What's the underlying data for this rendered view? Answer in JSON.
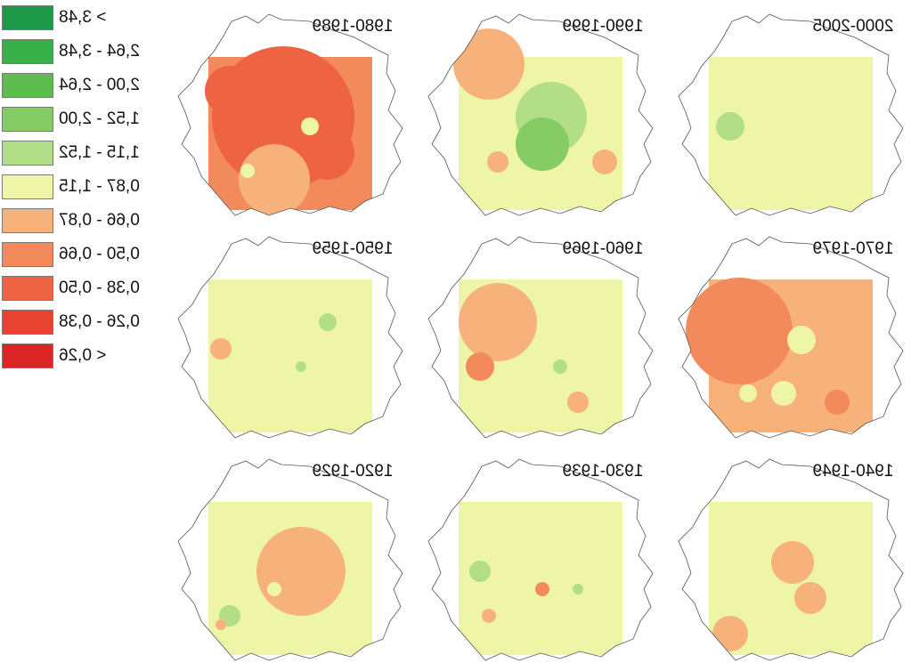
{
  "legend": {
    "items": [
      {
        "label": "> 3,48",
        "color": "#1f9a4a"
      },
      {
        "label": "2,64 - 3,48",
        "color": "#38b04a"
      },
      {
        "label": "2,00 - 2,64",
        "color": "#5cbc4e"
      },
      {
        "label": "1,52 - 2,00",
        "color": "#86cc64"
      },
      {
        "label": "1,15 - 1,52",
        "color": "#b3de88"
      },
      {
        "label": "0,87 - 1,15",
        "color": "#eef5a6"
      },
      {
        "label": "0,66 - 0,87",
        "color": "#f6b27a"
      },
      {
        "label": "0,50 - 0,66",
        "color": "#f38a5c"
      },
      {
        "label": "0,38 - 0,50",
        "color": "#ee6442"
      },
      {
        "label": "0,26 - 0,38",
        "color": "#e84230"
      },
      {
        "label": "< 0,26",
        "color": "#dc2626"
      }
    ]
  },
  "panels": [
    {
      "title": "1980-1989",
      "base": "#f38a5c"
    },
    {
      "title": "1990-1999",
      "base": "#eef5a6"
    },
    {
      "title": "2000-2005",
      "base": "#eef5a6"
    },
    {
      "title": "1950-1959",
      "base": "#eef5a6"
    },
    {
      "title": "1960-1969",
      "base": "#eef5a6"
    },
    {
      "title": "1970-1979",
      "base": "#f6b27a"
    },
    {
      "title": "1920-1929",
      "base": "#eef5a6"
    },
    {
      "title": "1930-1939",
      "base": "#eef5a6"
    },
    {
      "title": "1940-1949",
      "base": "#eef5a6"
    }
  ]
}
